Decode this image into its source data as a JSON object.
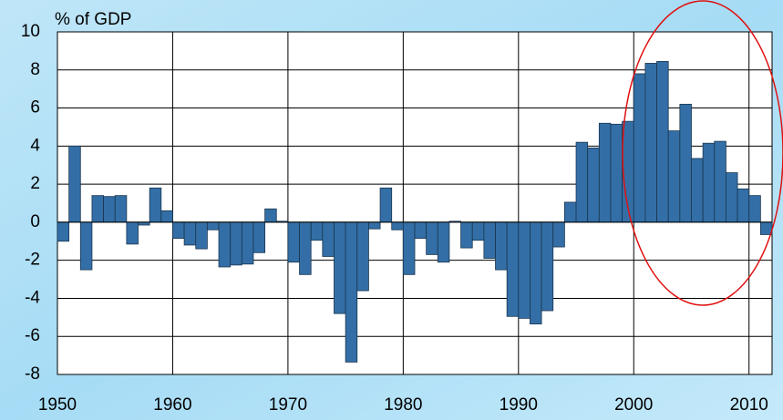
{
  "chart_data": {
    "type": "bar",
    "ylabel": "% of GDP",
    "x": [
      1950,
      1951,
      1952,
      1953,
      1954,
      1955,
      1956,
      1957,
      1958,
      1959,
      1960,
      1961,
      1962,
      1963,
      1964,
      1965,
      1966,
      1967,
      1968,
      1969,
      1970,
      1971,
      1972,
      1973,
      1974,
      1975,
      1976,
      1977,
      1978,
      1979,
      1980,
      1981,
      1982,
      1983,
      1984,
      1985,
      1986,
      1987,
      1988,
      1989,
      1990,
      1991,
      1992,
      1993,
      1994,
      1995,
      1996,
      1997,
      1998,
      1999,
      2000,
      2001,
      2002,
      2003,
      2004,
      2005,
      2006,
      2007,
      2008,
      2009,
      2010,
      2011
    ],
    "values": [
      -1.0,
      4.0,
      -2.5,
      1.4,
      1.35,
      1.4,
      -1.15,
      -0.15,
      1.8,
      0.6,
      -0.85,
      -1.2,
      -1.4,
      -0.4,
      -2.35,
      -2.25,
      -2.2,
      -1.6,
      0.7,
      0.05,
      -2.1,
      -2.75,
      -0.95,
      -1.8,
      -4.8,
      -7.35,
      -3.6,
      -0.35,
      1.8,
      -0.4,
      -2.75,
      -0.85,
      -1.7,
      -2.1,
      0.05,
      -1.35,
      -0.95,
      -1.9,
      -2.5,
      -4.95,
      -5.05,
      -5.35,
      -4.65,
      -1.3,
      1.05,
      4.2,
      3.9,
      5.2,
      5.15,
      5.3,
      7.8,
      8.35,
      8.45,
      4.8,
      6.2,
      3.35,
      4.15,
      4.25,
      2.6,
      1.75,
      1.4,
      -0.65
    ],
    "color": "#336fa6",
    "xlim": [
      1950,
      2012
    ],
    "xticks": [
      1950,
      1960,
      1970,
      1980,
      1990,
      2000,
      2010
    ],
    "ylim": [
      -8,
      10
    ],
    "yticks": [
      -8,
      -6,
      -4,
      -2,
      0,
      2,
      4,
      6,
      8,
      10
    ],
    "grid": true
  }
}
